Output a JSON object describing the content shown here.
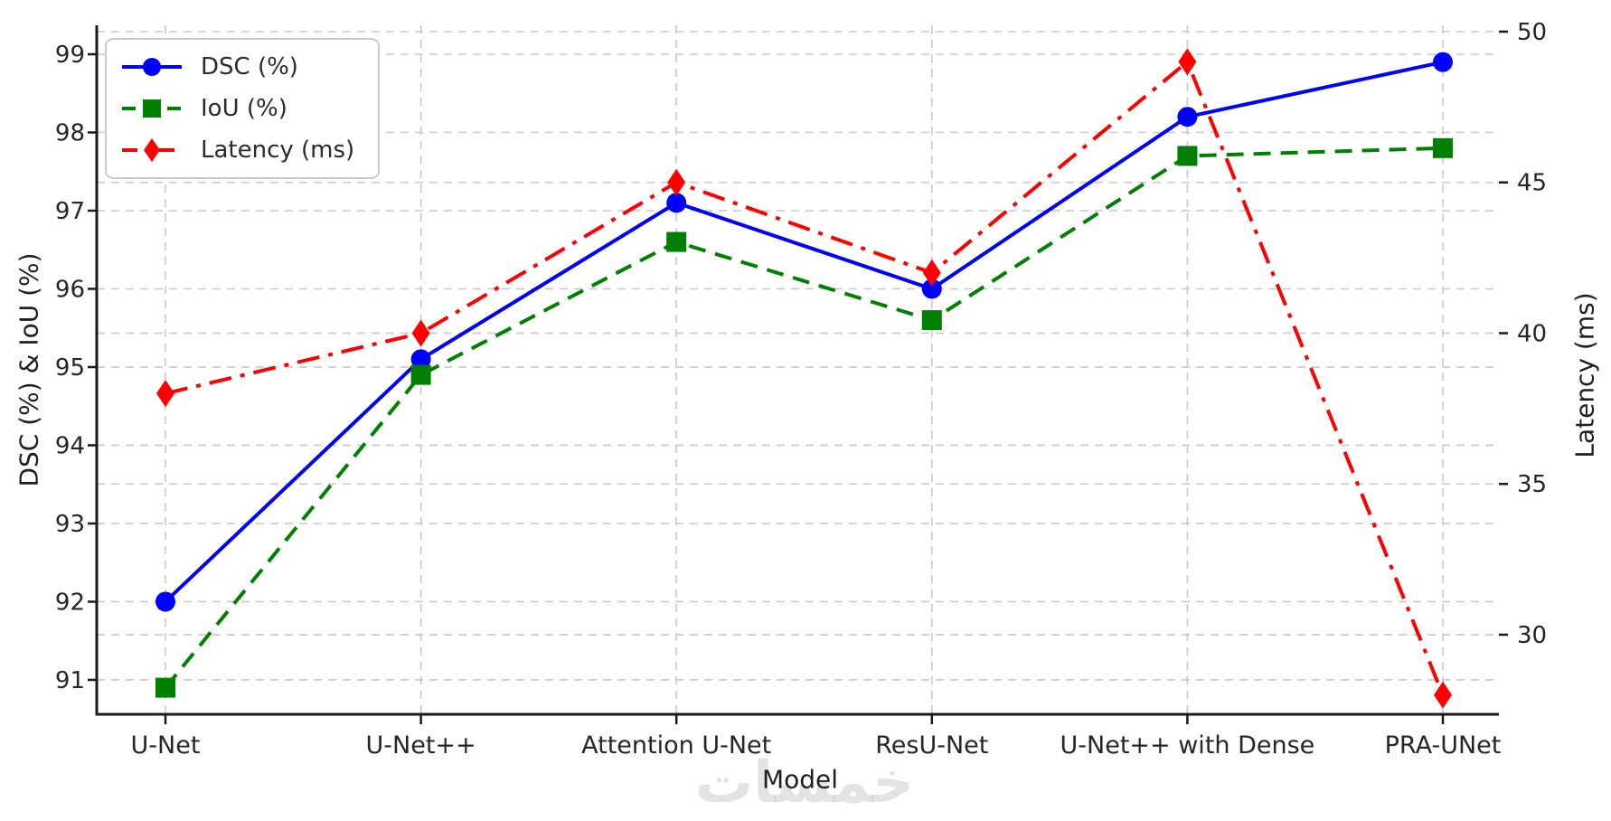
{
  "watermark_text": "خمسات",
  "chart_data": {
    "type": "line",
    "title": "",
    "xlabel": "Model",
    "ylabel_left": "DSC (%) & IoU (%)",
    "ylabel_right": "Latency (ms)",
    "categories": [
      "U-Net",
      "U-Net++",
      "Attention U-Net",
      "ResU-Net",
      "U-Net++ with Dense",
      "PRA-UNet"
    ],
    "left_axis": {
      "ticks": [
        91,
        92,
        93,
        94,
        95,
        96,
        97,
        98,
        99
      ],
      "range": [
        90.56,
        99.37
      ]
    },
    "right_axis": {
      "ticks": [
        30,
        35,
        40,
        45,
        50
      ],
      "range": [
        27.36,
        50.21
      ]
    },
    "grid": true,
    "legend_position": "upper-left",
    "series": [
      {
        "name": "DSC (%)",
        "axis": "left",
        "color": "#0000ff",
        "linestyle": "solid",
        "marker": "circle",
        "values": [
          92.0,
          95.1,
          97.1,
          96.0,
          98.2,
          98.9
        ]
      },
      {
        "name": "IoU (%)",
        "axis": "left",
        "color": "#008000",
        "linestyle": "dashed",
        "marker": "square",
        "values": [
          90.9,
          94.9,
          96.6,
          95.6,
          97.7,
          97.8
        ]
      },
      {
        "name": "Latency (ms)",
        "axis": "right",
        "color": "#ff0000",
        "linestyle": "dashdot",
        "marker": "diamond",
        "values": [
          38,
          40,
          45,
          42,
          49,
          28
        ]
      }
    ],
    "grid_color": "#c9c9c9",
    "spine_color": "#1a1a1a",
    "text_color": "#262626"
  }
}
